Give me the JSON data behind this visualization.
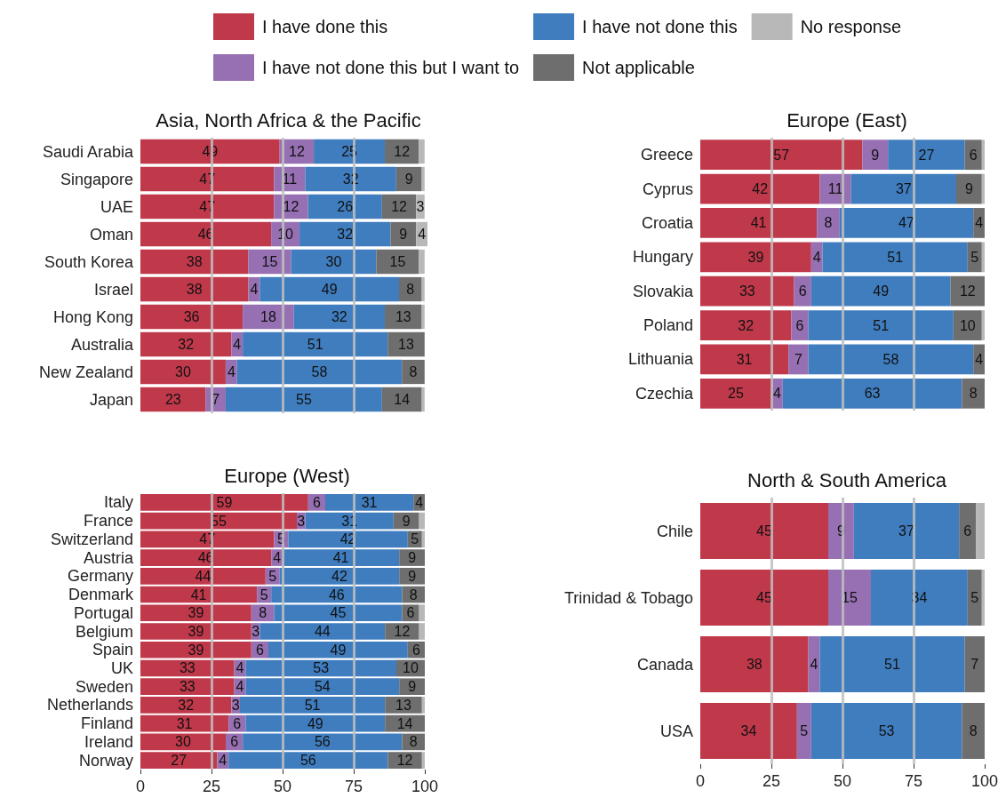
{
  "chart_data": [
    {
      "type": "bar",
      "orientation": "horizontal",
      "stacked": true,
      "title": "Asia, North Africa & the Pacific",
      "legend": "top",
      "grid": "x",
      "tick_labels": "y",
      "xlim": [
        0,
        101
      ],
      "xticks": [
        0,
        25,
        50,
        75,
        100
      ],
      "categories": [
        "Saudi Arabia",
        "Singapore",
        "UAE",
        "Oman",
        "South Korea",
        "Israel",
        "Hong Kong",
        "Australia",
        "New Zealand",
        "Japan"
      ],
      "series": [
        {
          "name": "I have done this",
          "color": "#c0394b",
          "values": [
            49,
            47,
            47,
            46,
            38,
            38,
            36,
            32,
            30,
            23
          ],
          "value_labels": [
            "49",
            "47",
            "47",
            "46",
            "38",
            "38",
            "36",
            "32",
            "30",
            "23"
          ]
        },
        {
          "name": "I have not done this but I want to",
          "color": "#9670b2",
          "values": [
            12,
            11,
            12,
            10,
            15,
            4,
            18,
            4,
            4,
            7
          ],
          "value_labels": [
            "12",
            "11",
            "12",
            "10",
            "15",
            "4",
            "18",
            "4",
            "4",
            "7"
          ]
        },
        {
          "name": "I have not done this",
          "color": "#3f7dbf",
          "values": [
            25,
            32,
            26,
            32,
            30,
            49,
            32,
            51,
            58,
            55
          ],
          "value_labels": [
            "25",
            "32",
            "26",
            "32",
            "30",
            "49",
            "32",
            "51",
            "58",
            "55"
          ]
        },
        {
          "name": "Not applicable",
          "color": "#6e6e6e",
          "values": [
            12,
            9,
            12,
            9,
            15,
            8,
            13,
            13,
            8,
            14
          ],
          "value_labels": [
            "12",
            "9",
            "12",
            "9",
            "15",
            "8",
            "13",
            "13",
            "8",
            "14"
          ]
        },
        {
          "name": "No response",
          "color": "#b8b8b8",
          "values": [
            2,
            1,
            3,
            4,
            2,
            1,
            1,
            null,
            null,
            1
          ],
          "value_labels": [
            null,
            null,
            "3",
            "4",
            null,
            null,
            null,
            null,
            null,
            null
          ]
        }
      ]
    },
    {
      "type": "bar",
      "orientation": "horizontal",
      "stacked": true,
      "title": "Europe (East)",
      "grid": "x",
      "tick_labels": "y",
      "xlim": [
        0,
        100
      ],
      "xticks": [
        0,
        25,
        50,
        75,
        100
      ],
      "categories": [
        "Greece",
        "Cyprus",
        "Croatia",
        "Hungary",
        "Slovakia",
        "Poland",
        "Lithuania",
        "Czechia"
      ],
      "series": [
        {
          "color": "#c0394b",
          "values": [
            57,
            42,
            41,
            39,
            33,
            32,
            31,
            25
          ],
          "value_labels": [
            "57",
            "42",
            "41",
            "39",
            "33",
            "32",
            "31",
            "25"
          ]
        },
        {
          "color": "#9670b2",
          "values": [
            9,
            11,
            8,
            4,
            6,
            6,
            7,
            4
          ],
          "value_labels": [
            "9",
            "11",
            "8",
            "4",
            "6",
            "6",
            "7",
            "4"
          ]
        },
        {
          "color": "#3f7dbf",
          "values": [
            27,
            37,
            47,
            51,
            49,
            51,
            58,
            63
          ],
          "value_labels": [
            "27",
            "37",
            "47",
            "51",
            "49",
            "51",
            "58",
            "63"
          ]
        },
        {
          "color": "#6e6e6e",
          "values": [
            6,
            9,
            4,
            5,
            12,
            10,
            4,
            8
          ],
          "value_labels": [
            "6",
            "9",
            "4",
            "5",
            "12",
            "10",
            "4",
            "8"
          ]
        },
        {
          "color": "#b8b8b8",
          "values": [
            1,
            1,
            null,
            1,
            null,
            1,
            null,
            null
          ],
          "value_labels": [
            null,
            null,
            null,
            null,
            null,
            null,
            null,
            null
          ]
        }
      ]
    },
    {
      "type": "bar",
      "orientation": "horizontal",
      "stacked": true,
      "title": "Europe (West)",
      "grid": "x",
      "xlim": [
        0,
        100
      ],
      "xticks": [
        0,
        25,
        50,
        75,
        100
      ],
      "categories": [
        "Italy",
        "France",
        "Switzerland",
        "Austria",
        "Germany",
        "Denmark",
        "Portugal",
        "Belgium",
        "Spain",
        "UK",
        "Sweden",
        "Netherlands",
        "Finland",
        "Ireland",
        "Norway"
      ],
      "series": [
        {
          "color": "#c0394b",
          "values": [
            59,
            55,
            47,
            46,
            44,
            41,
            39,
            39,
            39,
            33,
            33,
            32,
            31,
            30,
            27
          ],
          "value_labels": [
            "59",
            "55",
            "47",
            "46",
            "44",
            "41",
            "39",
            "39",
            "39",
            "33",
            "33",
            "32",
            "31",
            "30",
            "27"
          ]
        },
        {
          "color": "#9670b2",
          "values": [
            6,
            3,
            5,
            4,
            5,
            5,
            8,
            3,
            6,
            4,
            4,
            3,
            6,
            6,
            4
          ],
          "value_labels": [
            "6",
            "3",
            "5",
            "4",
            "5",
            "5",
            "8",
            "3",
            "6",
            "4",
            "4",
            "3",
            "6",
            "6",
            "4"
          ]
        },
        {
          "color": "#3f7dbf",
          "values": [
            31,
            31,
            42,
            41,
            42,
            46,
            45,
            44,
            49,
            53,
            54,
            51,
            49,
            56,
            56
          ],
          "value_labels": [
            "31",
            "31",
            "42",
            "41",
            "42",
            "46",
            "45",
            "44",
            "49",
            "53",
            "54",
            "51",
            "49",
            "56",
            "56"
          ]
        },
        {
          "color": "#6e6e6e",
          "values": [
            4,
            9,
            5,
            9,
            9,
            8,
            6,
            12,
            6,
            10,
            9,
            13,
            14,
            8,
            12
          ],
          "value_labels": [
            "4",
            "9",
            "5",
            "9",
            "9",
            "8",
            "6",
            "12",
            "6",
            "10",
            "9",
            "13",
            "14",
            "8",
            "12"
          ]
        },
        {
          "color": "#b8b8b8",
          "values": [
            null,
            2,
            1,
            null,
            null,
            null,
            2,
            2,
            null,
            null,
            null,
            1,
            null,
            null,
            1
          ],
          "value_labels": [
            null,
            null,
            null,
            null,
            null,
            null,
            null,
            null,
            null,
            null,
            null,
            null,
            null,
            null,
            null
          ]
        }
      ]
    },
    {
      "type": "bar",
      "orientation": "horizontal",
      "stacked": true,
      "title": "North & South America",
      "grid": "x",
      "xlim": [
        0,
        100
      ],
      "xticks": [
        0,
        25,
        50,
        75,
        100
      ],
      "categories": [
        "Chile",
        "Trinidad & Tobago",
        "Canada",
        "USA"
      ],
      "series": [
        {
          "color": "#c0394b",
          "values": [
            45,
            45,
            38,
            34
          ],
          "value_labels": [
            "45",
            "45",
            "38",
            "34"
          ]
        },
        {
          "color": "#9670b2",
          "values": [
            9,
            15,
            4,
            5
          ],
          "value_labels": [
            "9",
            "15",
            "4",
            "5"
          ]
        },
        {
          "color": "#3f7dbf",
          "values": [
            37,
            34,
            51,
            53
          ],
          "value_labels": [
            "37",
            "34",
            "51",
            "53"
          ]
        },
        {
          "color": "#6e6e6e",
          "values": [
            6,
            5,
            7,
            8
          ],
          "value_labels": [
            "6",
            "5",
            "7",
            "8"
          ]
        },
        {
          "color": "#b8b8b8",
          "values": [
            3,
            1,
            null,
            null
          ],
          "value_labels": [
            null,
            null,
            null,
            null
          ]
        }
      ]
    }
  ]
}
